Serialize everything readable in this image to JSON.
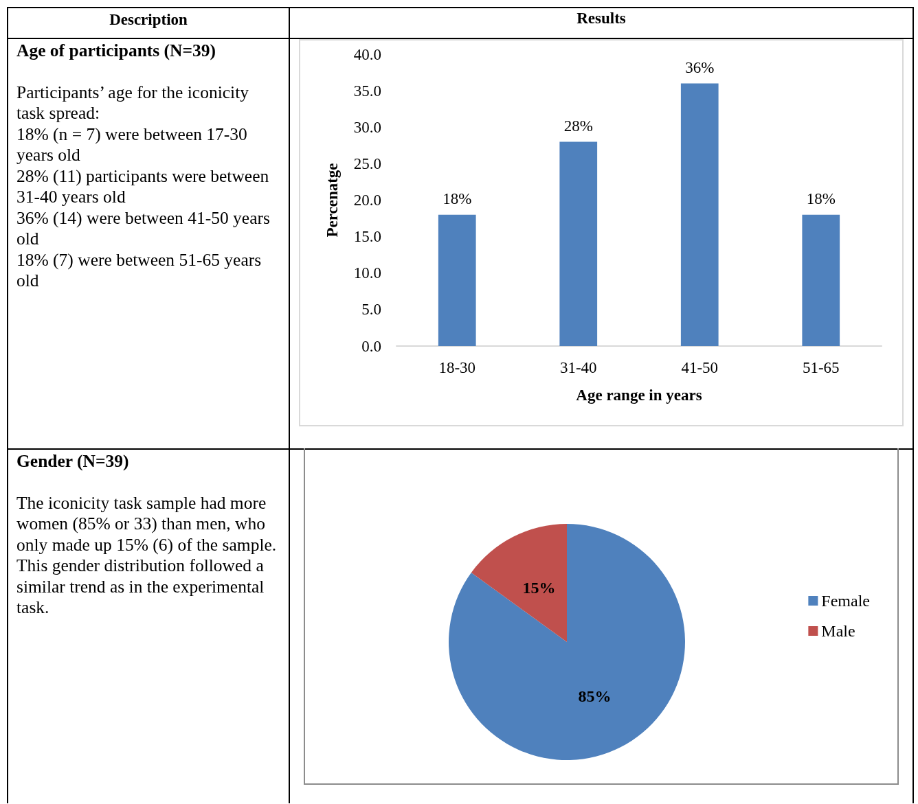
{
  "chart_data": [
    {
      "type": "other",
      "annotations": [
        "Description",
        "Results"
      ]
    },
    {
      "type": "other",
      "title": "Age of participants (N=39)",
      "annotations": [
        "Participants’ age for the iconicity task spread:",
        "18% (n = 7) were between 17-30 years old",
        "28% (11) participants were between 31-40 years old",
        "36% (14) were between 41-50 years old",
        "18% (7) were between 51-65 years old"
      ]
    },
    {
      "type": "bar",
      "categories": [
        "18-30",
        "31-40",
        "41-50",
        "51-65"
      ],
      "values": [
        18,
        28,
        36,
        18
      ],
      "value_labels": [
        "18%",
        "28%",
        "36%",
        "18%"
      ],
      "color": "#4f81bd",
      "xlabel": "Age range in years",
      "ylabel": "Percenatge",
      "ylim": [
        0,
        40
      ],
      "yticks": [
        {
          "value": 0,
          "label": "0.0"
        },
        {
          "value": 5,
          "label": "5.0"
        },
        {
          "value": 10,
          "label": "10.0"
        },
        {
          "value": 15,
          "label": "15.0"
        },
        {
          "value": 20,
          "label": "20.0"
        },
        {
          "value": 25,
          "label": "25.0"
        },
        {
          "value": 30,
          "label": "30.0"
        },
        {
          "value": 35,
          "label": "35.0"
        },
        {
          "value": 40,
          "label": "40.0"
        }
      ],
      "grid": false
    },
    {
      "type": "other",
      "title": "Gender (N=39)",
      "annotations": [
        "The iconicity task sample had more women (85% or 33) than men, who only made up 15% (6) of the sample. This gender distribution followed a similar trend as in the experimental task."
      ]
    },
    {
      "type": "pie",
      "categories": [
        "Female",
        "Male"
      ],
      "values": [
        85,
        15
      ],
      "colors": [
        "#4f81bd",
        "#c0504d"
      ],
      "value_labels": [
        "85%",
        "15%"
      ],
      "legend": "right"
    }
  ]
}
